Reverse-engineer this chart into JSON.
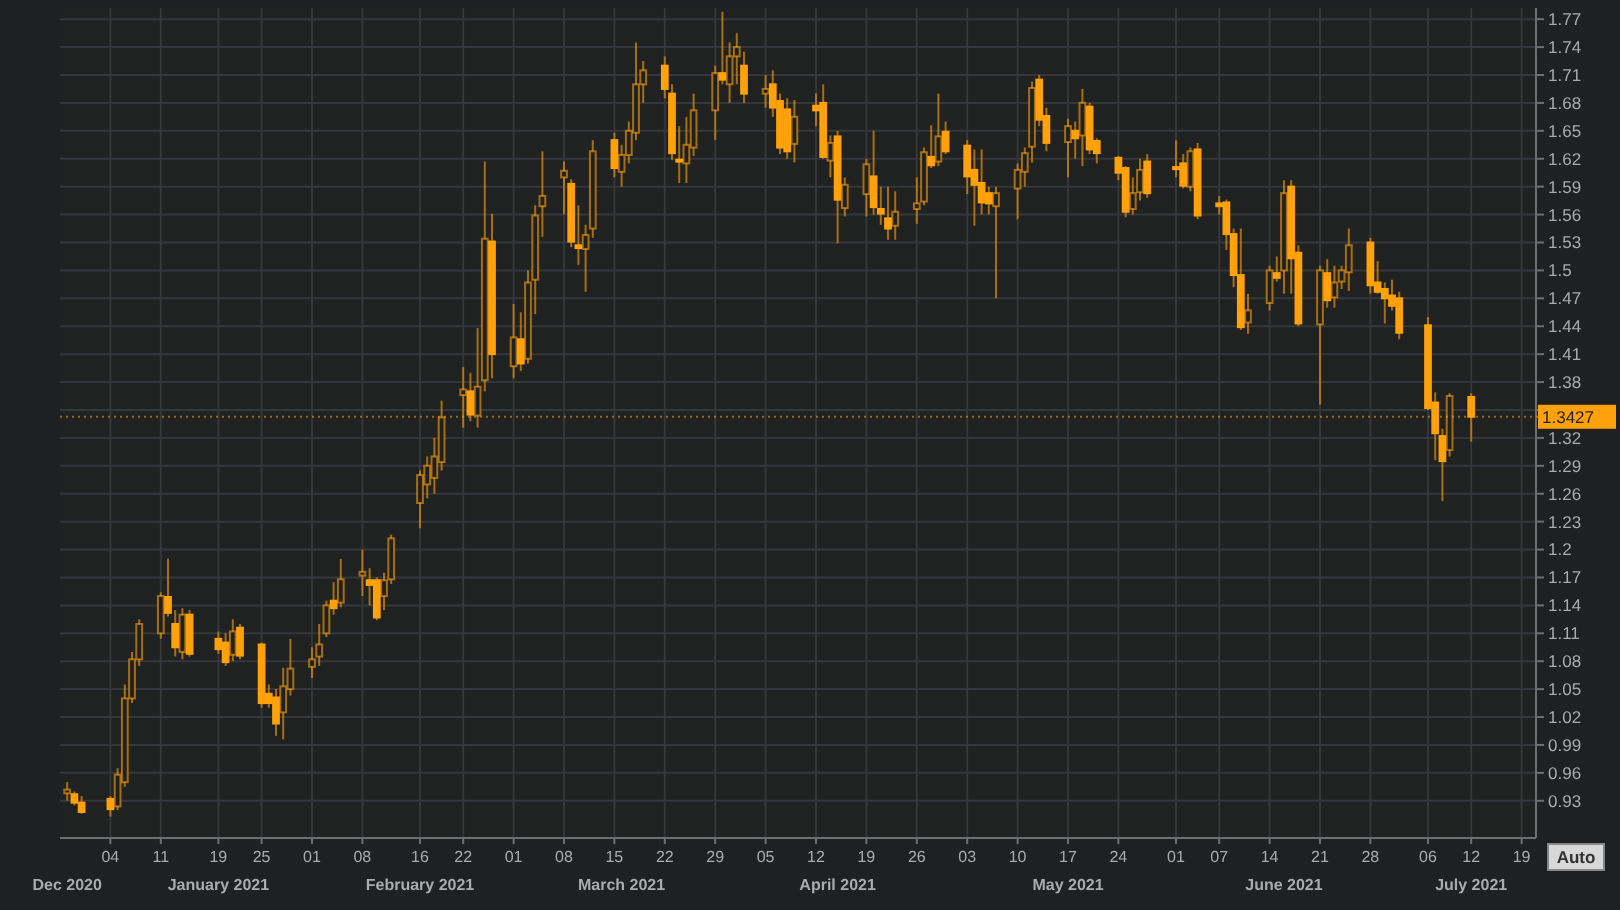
{
  "chart_data": {
    "type": "candlestick",
    "color": "#ffa10a",
    "grid": true,
    "x": [
      "2020-12-29",
      "2020-12-30",
      "2020-12-31",
      "2021-01-04",
      "2021-01-05",
      "2021-01-06",
      "2021-01-07",
      "2021-01-08",
      "2021-01-11",
      "2021-01-12",
      "2021-01-13",
      "2021-01-14",
      "2021-01-15",
      "2021-01-19",
      "2021-01-20",
      "2021-01-21",
      "2021-01-22",
      "2021-01-25",
      "2021-01-26",
      "2021-01-27",
      "2021-01-28",
      "2021-01-29",
      "2021-02-01",
      "2021-02-02",
      "2021-02-03",
      "2021-02-04",
      "2021-02-05",
      "2021-02-08",
      "2021-02-09",
      "2021-02-10",
      "2021-02-11",
      "2021-02-12",
      "2021-02-16",
      "2021-02-17",
      "2021-02-18",
      "2021-02-19",
      "2021-02-22",
      "2021-02-23",
      "2021-02-24",
      "2021-02-25",
      "2021-02-26",
      "2021-03-01",
      "2021-03-02",
      "2021-03-03",
      "2021-03-04",
      "2021-03-05",
      "2021-03-08",
      "2021-03-09",
      "2021-03-10",
      "2021-03-11",
      "2021-03-12",
      "2021-03-15",
      "2021-03-16",
      "2021-03-17",
      "2021-03-18",
      "2021-03-19",
      "2021-03-22",
      "2021-03-23",
      "2021-03-24",
      "2021-03-25",
      "2021-03-26",
      "2021-03-29",
      "2021-03-30",
      "2021-03-31",
      "2021-04-01",
      "2021-04-02",
      "2021-04-05",
      "2021-04-06",
      "2021-04-07",
      "2021-04-08",
      "2021-04-09",
      "2021-04-12",
      "2021-04-13",
      "2021-04-14",
      "2021-04-15",
      "2021-04-16",
      "2021-04-19",
      "2021-04-20",
      "2021-04-21",
      "2021-04-22",
      "2021-04-23",
      "2021-04-26",
      "2021-04-27",
      "2021-04-28",
      "2021-04-29",
      "2021-04-30",
      "2021-05-03",
      "2021-05-04",
      "2021-05-05",
      "2021-05-06",
      "2021-05-07",
      "2021-05-10",
      "2021-05-11",
      "2021-05-12",
      "2021-05-13",
      "2021-05-14",
      "2021-05-17",
      "2021-05-18",
      "2021-05-19",
      "2021-05-20",
      "2021-05-21",
      "2021-05-24",
      "2021-05-25",
      "2021-05-26",
      "2021-05-27",
      "2021-05-28",
      "2021-06-01",
      "2021-06-02",
      "2021-06-03",
      "2021-06-04",
      "2021-06-07",
      "2021-06-08",
      "2021-06-09",
      "2021-06-10",
      "2021-06-11",
      "2021-06-14",
      "2021-06-15",
      "2021-06-16",
      "2021-06-17",
      "2021-06-18",
      "2021-06-21",
      "2021-06-22",
      "2021-06-23",
      "2021-06-24",
      "2021-06-25",
      "2021-06-28",
      "2021-06-29",
      "2021-06-30",
      "2021-07-01",
      "2021-07-02",
      "2021-07-06",
      "2021-07-07",
      "2021-07-08",
      "2021-07-09",
      "2021-07-12"
    ],
    "ohlc": [
      [
        0.938,
        0.95,
        0.93,
        0.942
      ],
      [
        0.937,
        0.94,
        0.925,
        0.928
      ],
      [
        0.928,
        0.935,
        0.916,
        0.918
      ],
      [
        0.932,
        0.935,
        0.913,
        0.921
      ],
      [
        0.924,
        0.965,
        0.92,
        0.958
      ],
      [
        0.95,
        1.055,
        0.945,
        1.04
      ],
      [
        1.04,
        1.09,
        1.035,
        1.082
      ],
      [
        1.082,
        1.125,
        1.075,
        1.12
      ],
      [
        1.11,
        1.154,
        1.104,
        1.15
      ],
      [
        1.149,
        1.19,
        1.128,
        1.132
      ],
      [
        1.12,
        1.135,
        1.085,
        1.095
      ],
      [
        1.09,
        1.137,
        1.082,
        1.13
      ],
      [
        1.13,
        1.135,
        1.085,
        1.088
      ],
      [
        1.104,
        1.112,
        1.088,
        1.093
      ],
      [
        1.1,
        1.11,
        1.075,
        1.079
      ],
      [
        1.087,
        1.125,
        1.08,
        1.112
      ],
      [
        1.116,
        1.12,
        1.082,
        1.086
      ],
      [
        1.098,
        1.1,
        1.03,
        1.035
      ],
      [
        1.045,
        1.055,
        1.03,
        1.035
      ],
      [
        1.041,
        1.05,
        1.0,
        1.013
      ],
      [
        1.025,
        1.073,
        0.996,
        1.053
      ],
      [
        1.05,
        1.104,
        1.043,
        1.072
      ],
      [
        1.074,
        1.095,
        1.062,
        1.082
      ],
      [
        1.085,
        1.12,
        1.075,
        1.098
      ],
      [
        1.11,
        1.145,
        1.106,
        1.14
      ],
      [
        1.145,
        1.165,
        1.13,
        1.137
      ],
      [
        1.143,
        1.19,
        1.138,
        1.168
      ],
      [
        1.172,
        1.2,
        1.15,
        1.176
      ],
      [
        1.167,
        1.18,
        1.14,
        1.162
      ],
      [
        1.167,
        1.17,
        1.124,
        1.127
      ],
      [
        1.15,
        1.175,
        1.135,
        1.167
      ],
      [
        1.168,
        1.216,
        1.163,
        1.212
      ],
      [
        1.25,
        1.285,
        1.223,
        1.28
      ],
      [
        1.27,
        1.3,
        1.255,
        1.29
      ],
      [
        1.277,
        1.32,
        1.26,
        1.3
      ],
      [
        1.294,
        1.36,
        1.285,
        1.342
      ],
      [
        1.366,
        1.396,
        1.331,
        1.372
      ],
      [
        1.37,
        1.39,
        1.338,
        1.345
      ],
      [
        1.344,
        1.438,
        1.331,
        1.375
      ],
      [
        1.382,
        1.617,
        1.37,
        1.534
      ],
      [
        1.531,
        1.561,
        1.384,
        1.41
      ],
      [
        1.397,
        1.464,
        1.384,
        1.428
      ],
      [
        1.426,
        1.455,
        1.392,
        1.4
      ],
      [
        1.405,
        1.5,
        1.4,
        1.487
      ],
      [
        1.49,
        1.57,
        1.453,
        1.559
      ],
      [
        1.569,
        1.628,
        1.536,
        1.58
      ],
      [
        1.6,
        1.617,
        1.56,
        1.607
      ],
      [
        1.593,
        1.598,
        1.525,
        1.531
      ],
      [
        1.527,
        1.57,
        1.506,
        1.524
      ],
      [
        1.523,
        1.549,
        1.477,
        1.538
      ],
      [
        1.545,
        1.64,
        1.535,
        1.628
      ],
      [
        1.64,
        1.648,
        1.6,
        1.61
      ],
      [
        1.606,
        1.635,
        1.59,
        1.624
      ],
      [
        1.624,
        1.66,
        1.615,
        1.65
      ],
      [
        1.648,
        1.745,
        1.64,
        1.7
      ],
      [
        1.7,
        1.725,
        1.68,
        1.715
      ],
      [
        1.72,
        1.73,
        1.685,
        1.695
      ],
      [
        1.69,
        1.7,
        1.619,
        1.626
      ],
      [
        1.619,
        1.655,
        1.594,
        1.617
      ],
      [
        1.615,
        1.665,
        1.594,
        1.635
      ],
      [
        1.632,
        1.69,
        1.623,
        1.672
      ],
      [
        1.672,
        1.72,
        1.64,
        1.712
      ],
      [
        1.712,
        1.778,
        1.7,
        1.705
      ],
      [
        1.7,
        1.745,
        1.68,
        1.73
      ],
      [
        1.73,
        1.755,
        1.7,
        1.74
      ],
      [
        1.72,
        1.735,
        1.68,
        1.69
      ],
      [
        1.69,
        1.71,
        1.675,
        1.695
      ],
      [
        1.7,
        1.715,
        1.665,
        1.675
      ],
      [
        1.682,
        1.69,
        1.625,
        1.632
      ],
      [
        1.673,
        1.685,
        1.62,
        1.628
      ],
      [
        1.636,
        1.683,
        1.616,
        1.665
      ],
      [
        1.677,
        1.69,
        1.655,
        1.672
      ],
      [
        1.68,
        1.7,
        1.62,
        1.622
      ],
      [
        1.618,
        1.645,
        1.6,
        1.637
      ],
      [
        1.644,
        1.65,
        1.529,
        1.576
      ],
      [
        1.567,
        1.6,
        1.558,
        1.592
      ],
      [
        1.582,
        1.62,
        1.558,
        1.614
      ],
      [
        1.601,
        1.65,
        1.56,
        1.568
      ],
      [
        1.566,
        1.59,
        1.549,
        1.561
      ],
      [
        1.556,
        1.59,
        1.533,
        1.545
      ],
      [
        1.548,
        1.585,
        1.533,
        1.563
      ],
      [
        1.566,
        1.6,
        1.55,
        1.572
      ],
      [
        1.574,
        1.632,
        1.57,
        1.627
      ],
      [
        1.622,
        1.656,
        1.61,
        1.613
      ],
      [
        1.617,
        1.69,
        1.612,
        1.644
      ],
      [
        1.649,
        1.66,
        1.625,
        1.628
      ],
      [
        1.634,
        1.64,
        1.582,
        1.601
      ],
      [
        1.608,
        1.63,
        1.548,
        1.592
      ],
      [
        1.594,
        1.63,
        1.56,
        1.573
      ],
      [
        1.583,
        1.59,
        1.56,
        1.572
      ],
      [
        1.569,
        1.59,
        1.47,
        1.583
      ],
      [
        1.588,
        1.615,
        1.555,
        1.608
      ],
      [
        1.606,
        1.632,
        1.59,
        1.626
      ],
      [
        1.633,
        1.703,
        1.616,
        1.696
      ],
      [
        1.705,
        1.71,
        1.655,
        1.662
      ],
      [
        1.666,
        1.675,
        1.628,
        1.637
      ],
      [
        1.638,
        1.663,
        1.6,
        1.655
      ],
      [
        1.65,
        1.66,
        1.62,
        1.642
      ],
      [
        1.645,
        1.695,
        1.612,
        1.68
      ],
      [
        1.676,
        1.68,
        1.625,
        1.63
      ],
      [
        1.639,
        1.642,
        1.615,
        1.626
      ],
      [
        1.621,
        1.623,
        1.597,
        1.605
      ],
      [
        1.61,
        1.612,
        1.557,
        1.563
      ],
      [
        1.566,
        1.6,
        1.56,
        1.583
      ],
      [
        1.584,
        1.62,
        1.575,
        1.608
      ],
      [
        1.617,
        1.625,
        1.578,
        1.583
      ],
      [
        1.611,
        1.64,
        1.6,
        1.609
      ],
      [
        1.615,
        1.625,
        1.588,
        1.591
      ],
      [
        1.59,
        1.632,
        1.585,
        1.628
      ],
      [
        1.63,
        1.637,
        1.555,
        1.559
      ],
      [
        1.572,
        1.58,
        1.56,
        1.569
      ],
      [
        1.573,
        1.576,
        1.522,
        1.539
      ],
      [
        1.539,
        1.545,
        1.482,
        1.495
      ],
      [
        1.495,
        1.545,
        1.436,
        1.439
      ],
      [
        1.444,
        1.475,
        1.432,
        1.457
      ],
      [
        1.465,
        1.505,
        1.457,
        1.5
      ],
      [
        1.497,
        1.515,
        1.488,
        1.492
      ],
      [
        1.5,
        1.597,
        1.475,
        1.583
      ],
      [
        1.59,
        1.597,
        1.475,
        1.513
      ],
      [
        1.519,
        1.527,
        1.44,
        1.443
      ],
      [
        1.442,
        1.505,
        1.356,
        1.5
      ],
      [
        1.497,
        1.512,
        1.46,
        1.468
      ],
      [
        1.471,
        1.505,
        1.46,
        1.487
      ],
      [
        1.488,
        1.505,
        1.48,
        1.5
      ],
      [
        1.498,
        1.545,
        1.478,
        1.527
      ],
      [
        1.53,
        1.535,
        1.475,
        1.484
      ],
      [
        1.487,
        1.51,
        1.475,
        1.477
      ],
      [
        1.48,
        1.487,
        1.443,
        1.47
      ],
      [
        1.473,
        1.49,
        1.457,
        1.462
      ],
      [
        1.47,
        1.477,
        1.426,
        1.433
      ],
      [
        1.441,
        1.45,
        1.35,
        1.352
      ],
      [
        1.358,
        1.369,
        1.296,
        1.325
      ],
      [
        1.322,
        1.33,
        1.252,
        1.295
      ],
      [
        1.307,
        1.368,
        1.3,
        1.365
      ],
      [
        1.364,
        1.368,
        1.316,
        1.3427
      ]
    ],
    "xlim": [
      "2020-12-28",
      "2021-07-21"
    ],
    "xticks": [
      {
        "value": "2021-01-04",
        "label": "04"
      },
      {
        "value": "2021-01-11",
        "label": "11"
      },
      {
        "value": "2021-01-19",
        "label": "19"
      },
      {
        "value": "2021-01-25",
        "label": "25"
      },
      {
        "value": "2021-02-01",
        "label": "01"
      },
      {
        "value": "2021-02-08",
        "label": "08"
      },
      {
        "value": "2021-02-16",
        "label": "16"
      },
      {
        "value": "2021-02-22",
        "label": "22"
      },
      {
        "value": "2021-03-01",
        "label": "01"
      },
      {
        "value": "2021-03-08",
        "label": "08"
      },
      {
        "value": "2021-03-15",
        "label": "15"
      },
      {
        "value": "2021-03-22",
        "label": "22"
      },
      {
        "value": "2021-03-29",
        "label": "29"
      },
      {
        "value": "2021-04-05",
        "label": "05"
      },
      {
        "value": "2021-04-12",
        "label": "12"
      },
      {
        "value": "2021-04-19",
        "label": "19"
      },
      {
        "value": "2021-04-26",
        "label": "26"
      },
      {
        "value": "2021-05-03",
        "label": "03"
      },
      {
        "value": "2021-05-10",
        "label": "10"
      },
      {
        "value": "2021-05-17",
        "label": "17"
      },
      {
        "value": "2021-05-24",
        "label": "24"
      },
      {
        "value": "2021-06-01",
        "label": "01"
      },
      {
        "value": "2021-06-07",
        "label": "07"
      },
      {
        "value": "2021-06-14",
        "label": "14"
      },
      {
        "value": "2021-06-21",
        "label": "21"
      },
      {
        "value": "2021-06-28",
        "label": "28"
      },
      {
        "value": "2021-07-06",
        "label": "06"
      },
      {
        "value": "2021-07-12",
        "label": "12"
      },
      {
        "value": "2021-07-19",
        "label": "19"
      }
    ],
    "x2lim": [
      "2020-12-28",
      "2021-07-21"
    ],
    "x2ticks": [
      {
        "value": "2020-12-29",
        "label": "Dec 2020"
      },
      {
        "value": "2021-01-19",
        "label": "January 2021"
      },
      {
        "value": "2021-02-16",
        "label": "February 2021"
      },
      {
        "value": "2021-03-16",
        "label": "March 2021"
      },
      {
        "value": "2021-04-15",
        "label": "April 2021"
      },
      {
        "value": "2021-05-17",
        "label": "May 2021"
      },
      {
        "value": "2021-06-16",
        "label": "June 2021"
      },
      {
        "value": "2021-07-12",
        "label": "July 2021"
      }
    ],
    "ylim": [
      0.89,
      1.782
    ],
    "yticks": [
      0.93,
      0.96,
      0.99,
      1.02,
      1.05,
      1.08,
      1.11,
      1.14,
      1.17,
      1.2,
      1.23,
      1.26,
      1.29,
      1.32,
      {
        "value": 1.35,
        "label": null
      },
      1.38,
      1.41,
      1.44,
      1.47,
      1.5,
      1.53,
      1.56,
      1.59,
      1.62,
      1.65,
      1.68,
      1.71,
      1.74,
      1.77
    ],
    "ref_lines": [
      {
        "axis": "y",
        "value": 1.3427,
        "label": "1.3427",
        "line_style": "dotted"
      }
    ],
    "annotations": [
      "Auto"
    ]
  }
}
